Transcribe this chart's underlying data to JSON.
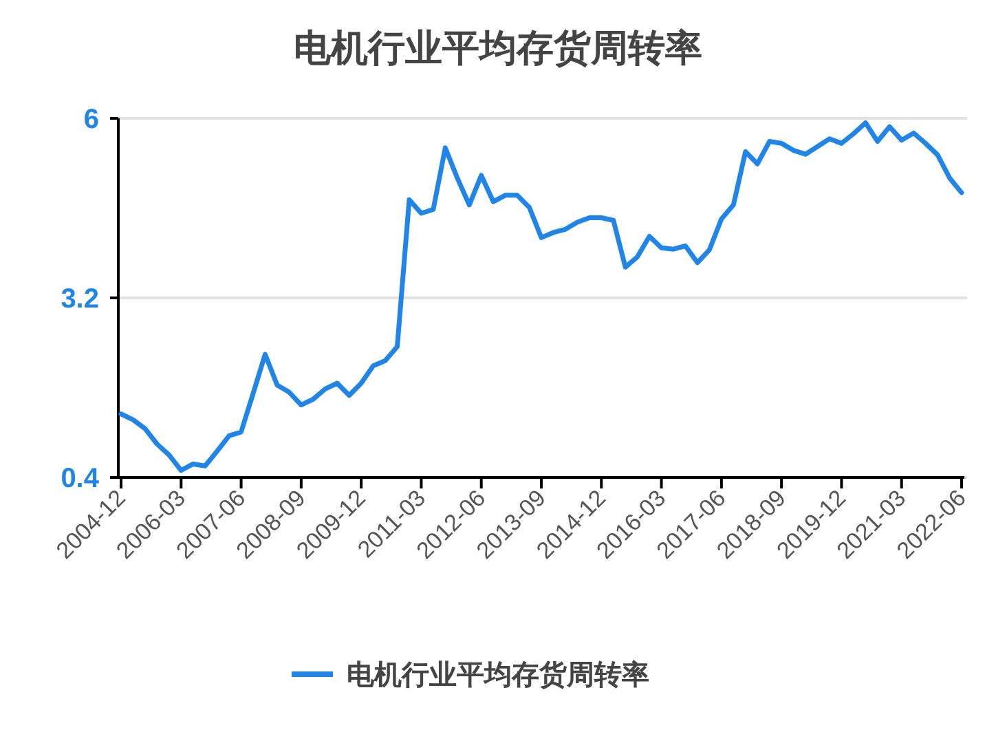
{
  "chart_data": {
    "type": "line",
    "title": "电机行业平均存货周转率",
    "categories": [
      "2004-12",
      null,
      null,
      null,
      null,
      "2006-03",
      null,
      null,
      null,
      null,
      "2007-06",
      null,
      null,
      null,
      null,
      "2008-09",
      null,
      null,
      null,
      null,
      "2009-12",
      null,
      null,
      null,
      null,
      "2011-03",
      null,
      null,
      null,
      null,
      "2012-06",
      null,
      null,
      null,
      null,
      "2013-09",
      null,
      null,
      null,
      null,
      "2014-12",
      null,
      null,
      null,
      null,
      "2016-03",
      null,
      null,
      null,
      null,
      "2017-06",
      null,
      null,
      null,
      null,
      "2018-09",
      null,
      null,
      null,
      null,
      "2019-12",
      null,
      null,
      null,
      null,
      "2021-03",
      null,
      null,
      null,
      null,
      "2022-06"
    ],
    "series": [
      {
        "name": "电机行业平均存货周转率",
        "color": "#2185e8",
        "values": [
          1.39,
          1.3,
          1.16,
          0.92,
          0.75,
          0.51,
          0.61,
          0.58,
          0.81,
          1.05,
          1.11,
          1.71,
          2.32,
          1.84,
          1.73,
          1.53,
          1.62,
          1.78,
          1.87,
          1.68,
          1.87,
          2.14,
          2.22,
          2.44,
          4.73,
          4.52,
          4.58,
          5.54,
          5.07,
          4.65,
          5.11,
          4.7,
          4.8,
          4.8,
          4.61,
          4.14,
          4.22,
          4.27,
          4.38,
          4.45,
          4.45,
          4.41,
          3.68,
          3.84,
          4.16,
          3.98,
          3.96,
          4.01,
          3.75,
          3.95,
          4.43,
          4.65,
          5.48,
          5.29,
          5.64,
          5.61,
          5.5,
          5.44,
          5.56,
          5.68,
          5.61,
          5.76,
          5.93,
          5.64,
          5.87,
          5.66,
          5.77,
          5.61,
          5.43,
          5.07,
          4.84
        ]
      }
    ],
    "ylim": [
      0.4,
      6
    ],
    "yticks": [
      0.4,
      3.2,
      6
    ],
    "grid": "y",
    "legend": "bottom",
    "marker": "none",
    "line_style": "solid"
  }
}
